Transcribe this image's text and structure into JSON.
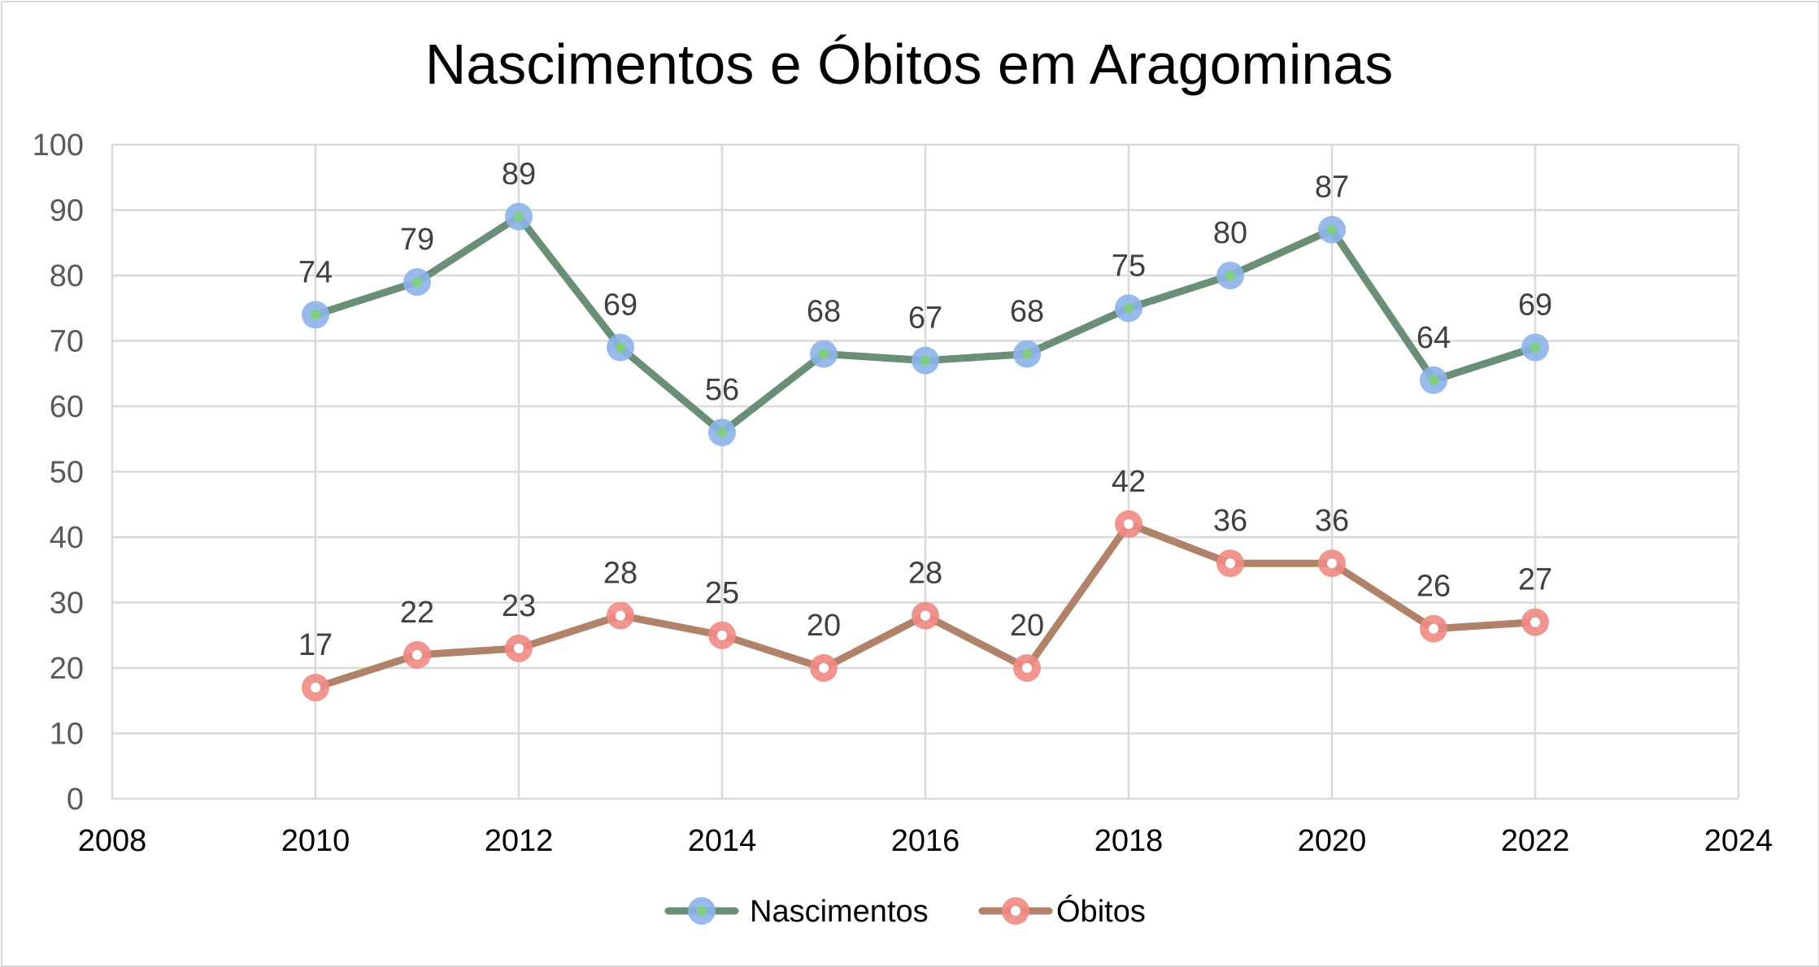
{
  "chart_data": {
    "type": "scatter",
    "title": "Nascimentos e Óbitos em Aragominas",
    "xlim": [
      2008,
      2024
    ],
    "ylim": [
      0,
      100
    ],
    "x_ticks": [
      2008,
      2010,
      2012,
      2014,
      2016,
      2018,
      2020,
      2022,
      2024
    ],
    "y_ticks": [
      0,
      10,
      20,
      30,
      40,
      50,
      60,
      70,
      80,
      90,
      100
    ],
    "grid": true,
    "legend_position": "bottom",
    "x": [
      2010,
      2011,
      2012,
      2013,
      2014,
      2015,
      2016,
      2017,
      2018,
      2019,
      2020,
      2021,
      2022
    ],
    "series": [
      {
        "name": "Nascimentos",
        "values": [
          74,
          79,
          89,
          69,
          56,
          68,
          67,
          68,
          75,
          80,
          87,
          64,
          69
        ],
        "line_color": "#6a8f76",
        "marker_color": "#8db3e8",
        "marker_center_color": "#7ed07e"
      },
      {
        "name": "Óbitos",
        "values": [
          17,
          22,
          23,
          28,
          25,
          20,
          28,
          20,
          42,
          36,
          36,
          26,
          27
        ],
        "line_color": "#b0826a",
        "marker_color": "#f08a84",
        "marker_center_color": "#ffffff"
      }
    ]
  }
}
